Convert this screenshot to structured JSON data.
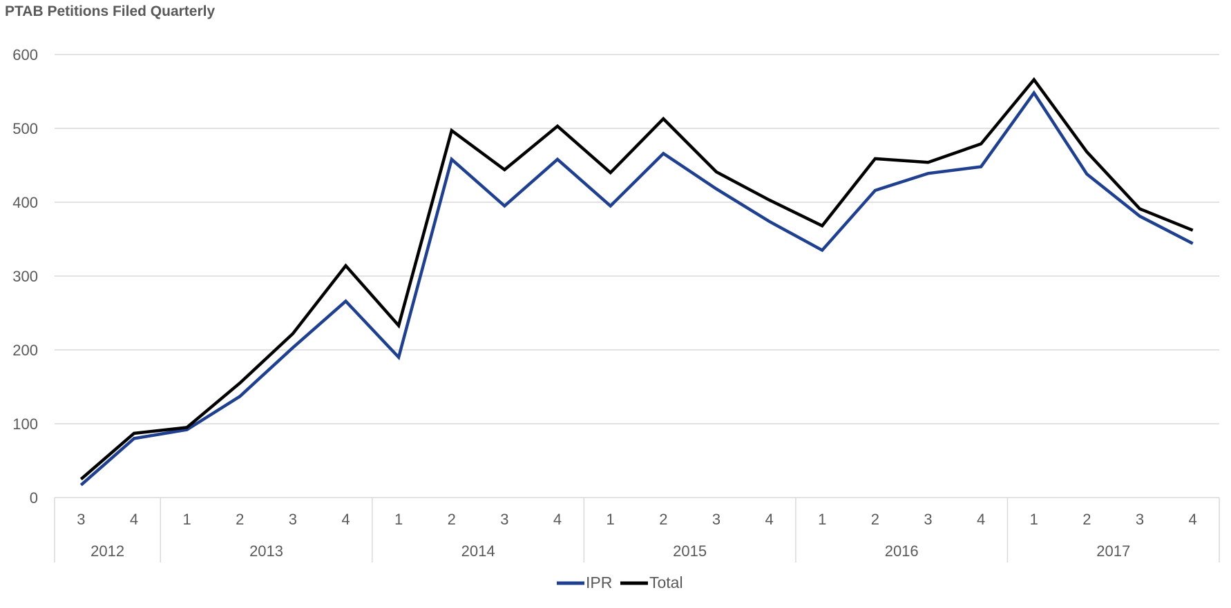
{
  "chart_data": {
    "type": "line",
    "title": "PTAB Petitions Filed Quarterly",
    "xlabel": "",
    "ylabel": "",
    "ylim": [
      0,
      600
    ],
    "yticks": [
      0,
      100,
      200,
      300,
      400,
      500,
      600
    ],
    "grid": true,
    "legend_position": "bottom",
    "categories": [
      {
        "year": "2012",
        "quarter": "3"
      },
      {
        "year": "2012",
        "quarter": "4"
      },
      {
        "year": "2013",
        "quarter": "1"
      },
      {
        "year": "2013",
        "quarter": "2"
      },
      {
        "year": "2013",
        "quarter": "3"
      },
      {
        "year": "2013",
        "quarter": "4"
      },
      {
        "year": "2014",
        "quarter": "1"
      },
      {
        "year": "2014",
        "quarter": "2"
      },
      {
        "year": "2014",
        "quarter": "3"
      },
      {
        "year": "2014",
        "quarter": "4"
      },
      {
        "year": "2015",
        "quarter": "1"
      },
      {
        "year": "2015",
        "quarter": "2"
      },
      {
        "year": "2015",
        "quarter": "3"
      },
      {
        "year": "2015",
        "quarter": "4"
      },
      {
        "year": "2016",
        "quarter": "1"
      },
      {
        "year": "2016",
        "quarter": "2"
      },
      {
        "year": "2016",
        "quarter": "3"
      },
      {
        "year": "2016",
        "quarter": "4"
      },
      {
        "year": "2017",
        "quarter": "1"
      },
      {
        "year": "2017",
        "quarter": "2"
      },
      {
        "year": "2017",
        "quarter": "3"
      },
      {
        "year": "2017",
        "quarter": "4"
      }
    ],
    "series": [
      {
        "name": "IPR",
        "color": "#1f3f8f",
        "values": [
          17,
          80,
          92,
          137,
          203,
          266,
          190,
          458,
          395,
          458,
          395,
          466,
          418,
          374,
          335,
          416,
          439,
          448,
          548,
          438,
          381,
          344
        ]
      },
      {
        "name": "Total",
        "color": "#000000",
        "values": [
          25,
          87,
          95,
          155,
          222,
          314,
          233,
          497,
          444,
          503,
          440,
          513,
          441,
          403,
          368,
          459,
          454,
          479,
          566,
          468,
          391,
          362
        ]
      }
    ]
  }
}
